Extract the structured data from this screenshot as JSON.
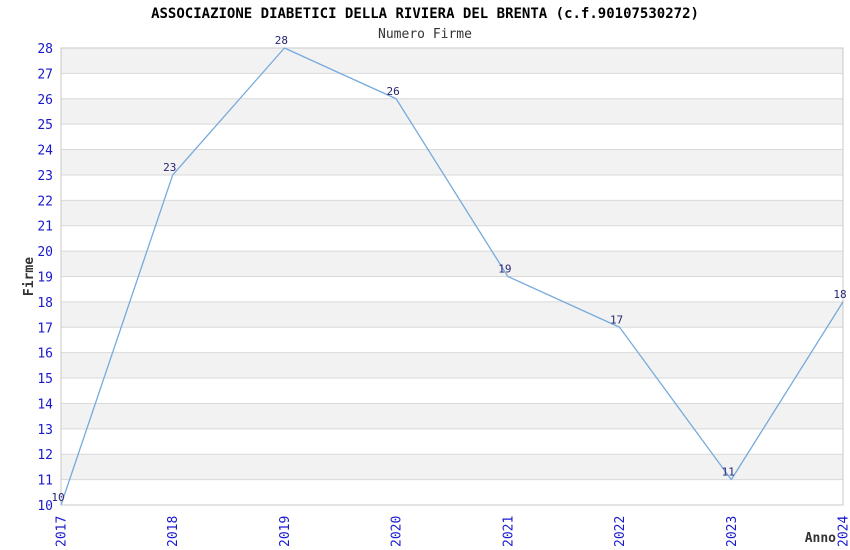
{
  "chart_data": {
    "type": "line",
    "title": "ASSOCIAZIONE DIABETICI DELLA RIVIERA DEL BRENTA (c.f.90107530272)",
    "subtitle": "Numero Firme",
    "xlabel": "Anno",
    "ylabel": "Firme",
    "categories": [
      "2017",
      "2018",
      "2019",
      "2020",
      "2021",
      "2022",
      "2023",
      "2024"
    ],
    "values": [
      10,
      23,
      28,
      26,
      19,
      17,
      11,
      18
    ],
    "ylim": [
      10,
      28
    ],
    "y_tick_step": 1,
    "point_labels_visible": true,
    "legend": "none",
    "grid": "horizontal",
    "band_pattern": [
      "#ffffff",
      "#f2f2f2"
    ],
    "colors": {
      "line": "#77aadd",
      "tick_label": "#1a1acd",
      "point_label": "#262673",
      "grid": "#d9d9d9",
      "border": "#c9c9c9",
      "title": "#000000",
      "subtitle": "#333333",
      "axis_title": "#333333",
      "background": "#ffffff"
    }
  }
}
